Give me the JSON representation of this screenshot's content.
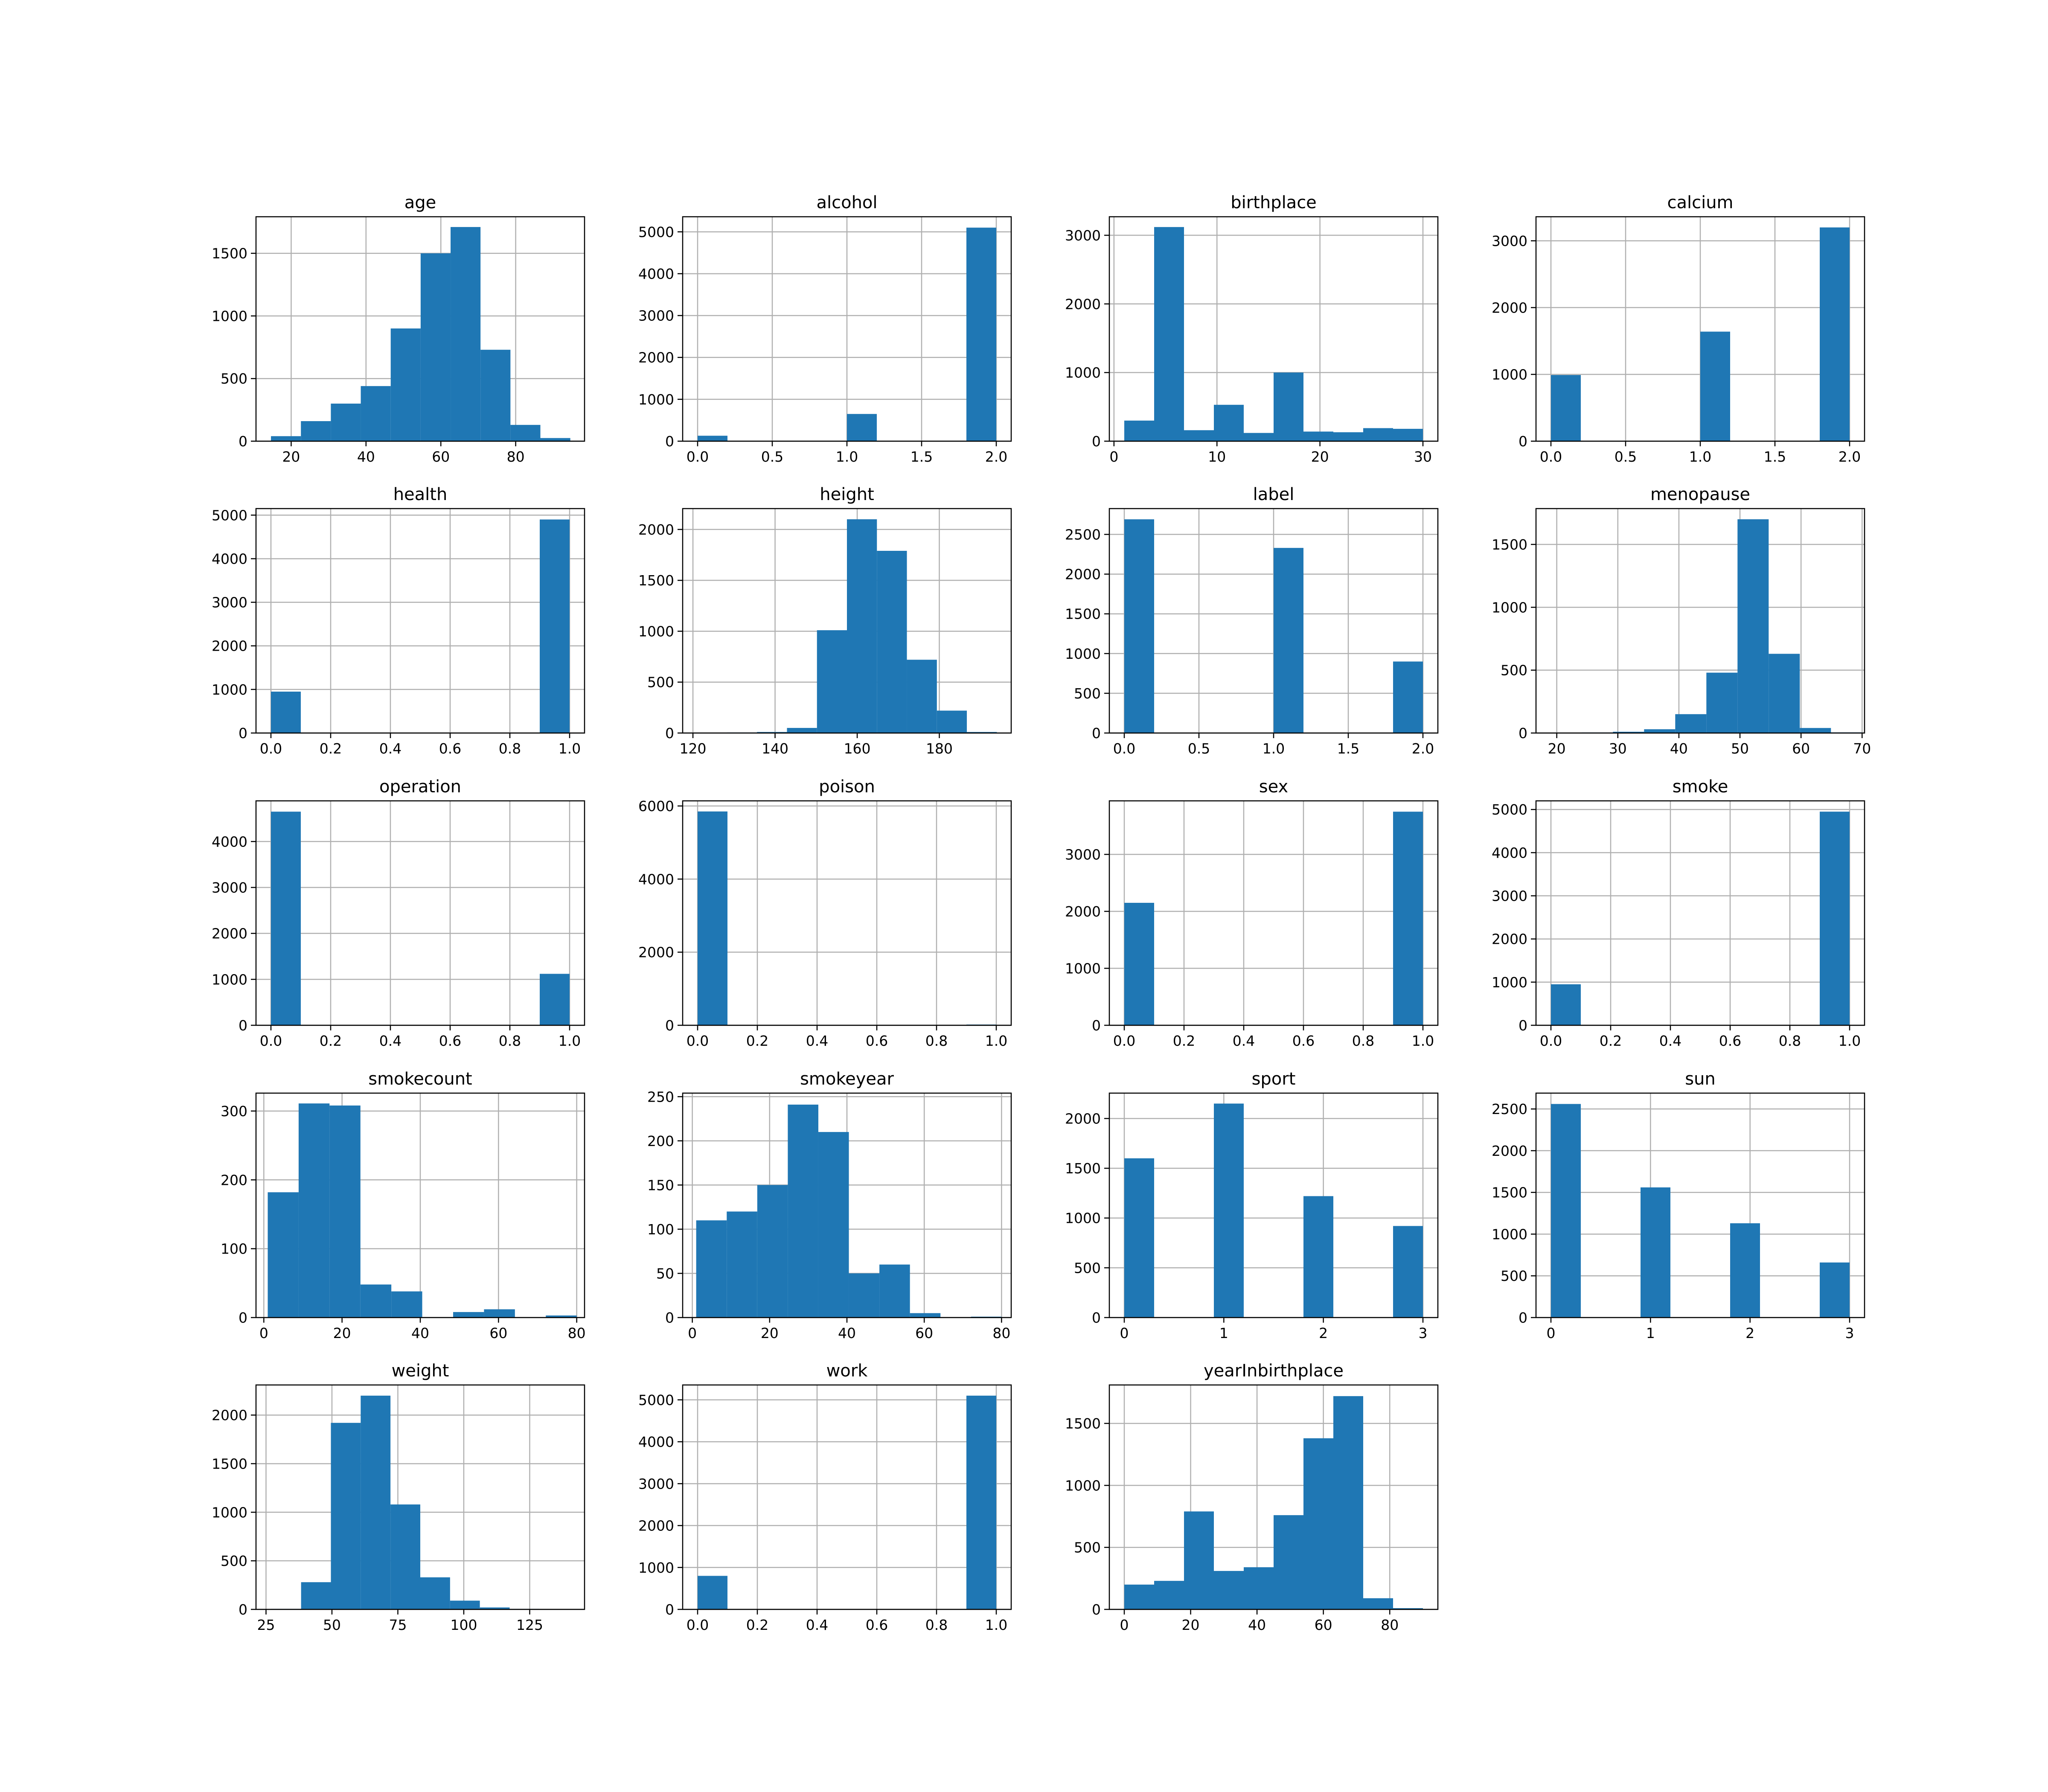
{
  "colors": {
    "bar": "#1f77b4",
    "grid": "#b0b0b0",
    "axis": "#000000"
  },
  "chart_data": [
    {
      "type": "bar",
      "title": "age",
      "grid": true,
      "xlim": [
        10.6,
        98.4
      ],
      "ylim": [
        0,
        1792
      ],
      "xticks": [
        20,
        40,
        60,
        80
      ],
      "yticks": [
        0,
        500,
        1000,
        1500
      ],
      "bin_edges": [
        14.6,
        22.6,
        30.6,
        38.6,
        46.6,
        54.6,
        62.6,
        70.6,
        78.6,
        86.6,
        94.6
      ],
      "values": [
        40,
        160,
        300,
        440,
        900,
        1500,
        1710,
        730,
        130,
        25
      ]
    },
    {
      "type": "bar",
      "title": "alcohol",
      "grid": true,
      "xlim": [
        -0.1,
        2.1
      ],
      "ylim": [
        0,
        5360
      ],
      "xticks": [
        0.0,
        0.5,
        1.0,
        1.5,
        2.0
      ],
      "yticks": [
        0,
        1000,
        2000,
        3000,
        4000,
        5000
      ],
      "bin_edges": [
        0.0,
        0.2,
        0.4,
        0.6,
        0.8,
        1.0,
        1.2,
        1.4,
        1.6,
        1.8,
        2.0
      ],
      "values": [
        130,
        0,
        0,
        0,
        0,
        650,
        0,
        0,
        0,
        5100
      ]
    },
    {
      "type": "bar",
      "title": "birthplace",
      "grid": true,
      "xlim": [
        -0.45,
        31.45
      ],
      "ylim": [
        0,
        3270
      ],
      "xticks": [
        0,
        10,
        20,
        30
      ],
      "yticks": [
        0,
        1000,
        2000,
        3000
      ],
      "bin_edges": [
        1.0,
        3.9,
        6.8,
        9.7,
        12.6,
        15.5,
        18.4,
        21.3,
        24.2,
        27.1,
        30.0
      ],
      "values": [
        300,
        3120,
        160,
        530,
        120,
        1000,
        140,
        130,
        190,
        180
      ]
    },
    {
      "type": "bar",
      "title": "calcium",
      "grid": true,
      "xlim": [
        -0.1,
        2.1
      ],
      "ylim": [
        0,
        3360
      ],
      "xticks": [
        0.0,
        0.5,
        1.0,
        1.5,
        2.0
      ],
      "yticks": [
        0,
        1000,
        2000,
        3000
      ],
      "bin_edges": [
        0.0,
        0.2,
        0.4,
        0.6,
        0.8,
        1.0,
        1.2,
        1.4,
        1.6,
        1.8,
        2.0
      ],
      "values": [
        990,
        0,
        0,
        0,
        0,
        1640,
        0,
        0,
        0,
        3200
      ]
    },
    {
      "type": "bar",
      "title": "health",
      "grid": true,
      "xlim": [
        -0.05,
        1.05
      ],
      "ylim": [
        0,
        5150
      ],
      "xticks": [
        0.0,
        0.2,
        0.4,
        0.6,
        0.8,
        1.0
      ],
      "yticks": [
        0,
        1000,
        2000,
        3000,
        4000,
        5000
      ],
      "bin_edges": [
        0.0,
        0.1,
        0.2,
        0.3,
        0.4,
        0.5,
        0.6,
        0.7,
        0.8,
        0.9,
        1.0
      ],
      "values": [
        950,
        0,
        0,
        0,
        0,
        0,
        0,
        0,
        0,
        4900
      ]
    },
    {
      "type": "bar",
      "title": "height",
      "grid": true,
      "xlim": [
        117.5,
        197.5
      ],
      "ylim": [
        0,
        2205
      ],
      "xticks": [
        120,
        140,
        160,
        180
      ],
      "yticks": [
        0,
        500,
        1000,
        1500,
        2000
      ],
      "bin_edges": [
        121,
        128.3,
        135.6,
        142.9,
        150.2,
        157.5,
        164.8,
        172.1,
        179.4,
        186.7,
        194
      ],
      "values": [
        3,
        5,
        10,
        50,
        1010,
        2100,
        1790,
        720,
        220,
        10
      ]
    },
    {
      "type": "bar",
      "title": "label",
      "grid": true,
      "xlim": [
        -0.1,
        2.1
      ],
      "ylim": [
        0,
        2825
      ],
      "xticks": [
        0.0,
        0.5,
        1.0,
        1.5,
        2.0
      ],
      "yticks": [
        0,
        500,
        1000,
        1500,
        2000,
        2500
      ],
      "bin_edges": [
        0.0,
        0.2,
        0.4,
        0.6,
        0.8,
        1.0,
        1.2,
        1.4,
        1.6,
        1.8,
        2.0
      ],
      "values": [
        2690,
        0,
        0,
        0,
        0,
        2330,
        0,
        0,
        0,
        900
      ]
    },
    {
      "type": "bar",
      "title": "menopause",
      "grid": true,
      "xlim": [
        16.6,
        70.4
      ],
      "ylim": [
        0,
        1785
      ],
      "xticks": [
        20,
        30,
        40,
        50,
        60,
        70
      ],
      "yticks": [
        0,
        500,
        1000,
        1500
      ],
      "bin_edges": [
        19,
        24.1,
        29.2,
        34.3,
        39.4,
        44.5,
        49.6,
        54.7,
        59.8,
        64.9,
        70
      ],
      "values": [
        2,
        4,
        10,
        30,
        150,
        480,
        1700,
        630,
        40,
        5
      ]
    },
    {
      "type": "bar",
      "title": "operation",
      "grid": true,
      "xlim": [
        -0.05,
        1.05
      ],
      "ylim": [
        0,
        4885
      ],
      "xticks": [
        0.0,
        0.2,
        0.4,
        0.6,
        0.8,
        1.0
      ],
      "yticks": [
        0,
        1000,
        2000,
        3000,
        4000
      ],
      "bin_edges": [
        0.0,
        0.1,
        0.2,
        0.3,
        0.4,
        0.5,
        0.6,
        0.7,
        0.8,
        0.9,
        1.0
      ],
      "values": [
        4650,
        0,
        0,
        0,
        0,
        0,
        0,
        0,
        0,
        1120
      ]
    },
    {
      "type": "bar",
      "title": "poison",
      "grid": true,
      "xlim": [
        -0.05,
        1.05
      ],
      "ylim": [
        0,
        6140
      ],
      "xticks": [
        0.0,
        0.2,
        0.4,
        0.6,
        0.8,
        1.0
      ],
      "yticks": [
        0,
        2000,
        4000,
        6000
      ],
      "bin_edges": [
        0.0,
        0.1,
        0.2,
        0.3,
        0.4,
        0.5,
        0.6,
        0.7,
        0.8,
        0.9,
        1.0
      ],
      "values": [
        5850,
        0,
        0,
        0,
        0,
        0,
        0,
        0,
        0,
        20
      ]
    },
    {
      "type": "bar",
      "title": "sex",
      "grid": true,
      "xlim": [
        -0.05,
        1.05
      ],
      "ylim": [
        0,
        3940
      ],
      "xticks": [
        0.0,
        0.2,
        0.4,
        0.6,
        0.8,
        1.0
      ],
      "yticks": [
        0,
        1000,
        2000,
        3000
      ],
      "bin_edges": [
        0.0,
        0.1,
        0.2,
        0.3,
        0.4,
        0.5,
        0.6,
        0.7,
        0.8,
        0.9,
        1.0
      ],
      "values": [
        2150,
        0,
        0,
        0,
        0,
        0,
        0,
        0,
        0,
        3750
      ]
    },
    {
      "type": "bar",
      "title": "smoke",
      "grid": true,
      "xlim": [
        -0.05,
        1.05
      ],
      "ylim": [
        0,
        5200
      ],
      "xticks": [
        0.0,
        0.2,
        0.4,
        0.6,
        0.8,
        1.0
      ],
      "yticks": [
        0,
        1000,
        2000,
        3000,
        4000,
        5000
      ],
      "bin_edges": [
        0.0,
        0.1,
        0.2,
        0.3,
        0.4,
        0.5,
        0.6,
        0.7,
        0.8,
        0.9,
        1.0
      ],
      "values": [
        950,
        0,
        0,
        0,
        0,
        0,
        0,
        0,
        0,
        4950
      ]
    },
    {
      "type": "bar",
      "title": "smokecount",
      "grid": true,
      "xlim": [
        -2,
        82
      ],
      "ylim": [
        0,
        326
      ],
      "xticks": [
        0,
        20,
        40,
        60,
        80
      ],
      "yticks": [
        0,
        100,
        200,
        300
      ],
      "bin_edges": [
        1,
        8.9,
        16.8,
        24.7,
        32.6,
        40.5,
        48.4,
        56.3,
        64.2,
        72.1,
        80
      ],
      "values": [
        182,
        311,
        308,
        48,
        38,
        0,
        8,
        12,
        0,
        3
      ]
    },
    {
      "type": "bar",
      "title": "smokeyear",
      "grid": true,
      "xlim": [
        -2.5,
        82.5
      ],
      "ylim": [
        0,
        254
      ],
      "xticks": [
        0,
        20,
        40,
        60,
        80
      ],
      "yticks": [
        0,
        50,
        100,
        150,
        200,
        250
      ],
      "bin_edges": [
        1,
        8.9,
        16.8,
        24.7,
        32.6,
        40.5,
        48.4,
        56.3,
        64.2,
        72.1,
        80
      ],
      "values": [
        110,
        120,
        150,
        241,
        210,
        50,
        60,
        5,
        0,
        1
      ]
    },
    {
      "type": "bar",
      "title": "sport",
      "grid": true,
      "xlim": [
        -0.15,
        3.15
      ],
      "ylim": [
        0,
        2255
      ],
      "xticks": [
        0,
        1,
        2,
        3
      ],
      "yticks": [
        0,
        500,
        1000,
        1500,
        2000
      ],
      "bin_edges": [
        0.0,
        0.3,
        0.6,
        0.9,
        1.2,
        1.5,
        1.8,
        2.1,
        2.4,
        2.7,
        3.0
      ],
      "values": [
        1600,
        0,
        0,
        2150,
        0,
        0,
        1220,
        0,
        0,
        920
      ]
    },
    {
      "type": "bar",
      "title": "sun",
      "grid": true,
      "xlim": [
        -0.15,
        3.15
      ],
      "ylim": [
        0,
        2690
      ],
      "xticks": [
        0,
        1,
        2,
        3
      ],
      "yticks": [
        0,
        500,
        1000,
        1500,
        2000,
        2500
      ],
      "bin_edges": [
        0.0,
        0.3,
        0.6,
        0.9,
        1.2,
        1.5,
        1.8,
        2.1,
        2.4,
        2.7,
        3.0
      ],
      "values": [
        2560,
        0,
        0,
        1560,
        0,
        0,
        1130,
        0,
        0,
        660
      ]
    },
    {
      "type": "bar",
      "title": "weight",
      "grid": true,
      "xlim": [
        21.2,
        145.8
      ],
      "ylim": [
        0,
        2310
      ],
      "xticks": [
        25,
        50,
        75,
        100,
        125
      ],
      "yticks": [
        0,
        500,
        1000,
        1500,
        2000
      ],
      "bin_edges": [
        27,
        38.3,
        49.6,
        60.9,
        72.2,
        83.5,
        94.8,
        106.1,
        117.4,
        128.7,
        140
      ],
      "values": [
        5,
        280,
        1920,
        2200,
        1080,
        330,
        90,
        20,
        5,
        2
      ]
    },
    {
      "type": "bar",
      "title": "work",
      "grid": true,
      "xlim": [
        -0.05,
        1.05
      ],
      "ylim": [
        0,
        5355
      ],
      "xticks": [
        0.0,
        0.2,
        0.4,
        0.6,
        0.8,
        1.0
      ],
      "yticks": [
        0,
        1000,
        2000,
        3000,
        4000,
        5000
      ],
      "bin_edges": [
        0.0,
        0.1,
        0.2,
        0.3,
        0.4,
        0.5,
        0.6,
        0.7,
        0.8,
        0.9,
        1.0
      ],
      "values": [
        800,
        0,
        0,
        0,
        0,
        0,
        0,
        0,
        0,
        5100
      ]
    },
    {
      "type": "bar",
      "title": "yearInbirthplace",
      "grid": true,
      "xlim": [
        -4.5,
        94.5
      ],
      "ylim": [
        0,
        1810
      ],
      "xticks": [
        0,
        20,
        40,
        60,
        80
      ],
      "yticks": [
        0,
        500,
        1000,
        1500
      ],
      "bin_edges": [
        0,
        9,
        18,
        27,
        36,
        45,
        54,
        63,
        72,
        81,
        90
      ],
      "values": [
        200,
        230,
        790,
        310,
        340,
        760,
        1380,
        1720,
        90,
        10
      ]
    }
  ]
}
